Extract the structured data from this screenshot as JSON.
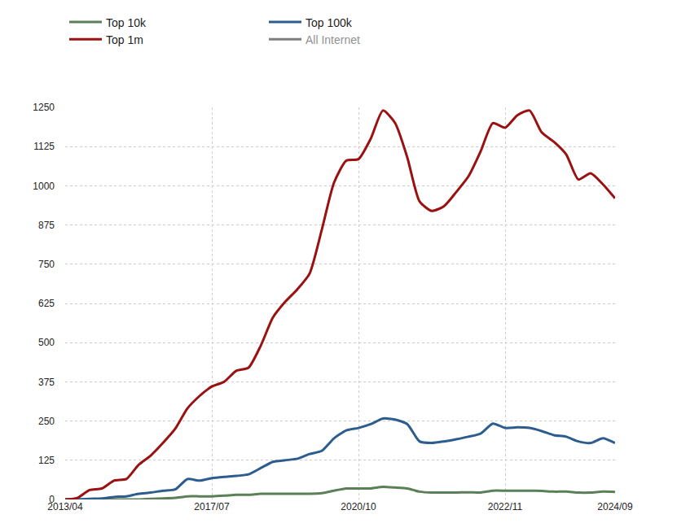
{
  "chart_data": {
    "type": "line",
    "categories": [
      "2013/04",
      null,
      null,
      null,
      null,
      null,
      null,
      null,
      null,
      null,
      null,
      null,
      "2017/07",
      null,
      null,
      null,
      null,
      null,
      null,
      null,
      null,
      null,
      null,
      null,
      "2020/10",
      null,
      null,
      null,
      null,
      null,
      null,
      null,
      null,
      null,
      null,
      null,
      "2022/11",
      null,
      null,
      null,
      null,
      null,
      null,
      null,
      null,
      "2024/09"
    ],
    "series": [
      {
        "name": "Top 10k",
        "color": "#5b7f56",
        "values": [
          0,
          0,
          0,
          0,
          0,
          0,
          0,
          2,
          3,
          5,
          10,
          10,
          10,
          12,
          15,
          15,
          18,
          18,
          18,
          18,
          18,
          20,
          28,
          35,
          35,
          35,
          40,
          38,
          35,
          25,
          22,
          22,
          22,
          23,
          22,
          28,
          28,
          28,
          28,
          27,
          25,
          25,
          22,
          22,
          25,
          24
        ]
      },
      {
        "name": "Top 100k",
        "color": "#2d5d8f",
        "values": [
          0,
          0,
          2,
          3,
          8,
          10,
          18,
          22,
          28,
          32,
          65,
          60,
          68,
          72,
          75,
          80,
          100,
          120,
          125,
          130,
          145,
          155,
          195,
          220,
          228,
          240,
          258,
          255,
          240,
          185,
          180,
          185,
          192,
          200,
          210,
          242,
          228,
          230,
          228,
          218,
          205,
          200,
          185,
          180,
          195,
          180
        ]
      },
      {
        "name": "Top 1m",
        "color": "#991111",
        "values": [
          0,
          5,
          30,
          35,
          60,
          65,
          110,
          140,
          180,
          225,
          290,
          330,
          360,
          375,
          410,
          420,
          490,
          580,
          630,
          670,
          720,
          860,
          1010,
          1080,
          1085,
          1150,
          1240,
          1200,
          1090,
          950,
          920,
          935,
          980,
          1030,
          1110,
          1200,
          1185,
          1225,
          1240,
          1170,
          1140,
          1100,
          1020,
          1040,
          1005,
          960
        ]
      },
      {
        "name": "All Internet",
        "color": "#000000",
        "values": [
          null,
          null,
          null,
          null,
          null,
          null,
          null,
          null,
          null,
          null,
          null,
          null,
          null,
          null,
          null,
          null,
          null,
          null,
          null,
          null,
          null,
          null,
          null,
          null,
          null,
          null,
          null,
          null,
          null,
          null,
          null,
          null,
          null,
          null,
          null,
          null,
          null,
          null,
          null,
          null,
          null,
          null,
          null,
          null,
          null,
          null
        ]
      }
    ],
    "ylim": [
      0,
      1250
    ],
    "yticks": [
      0,
      125,
      250,
      375,
      500,
      625,
      750,
      875,
      1000,
      1125,
      1250
    ],
    "grid": true,
    "legend": "top"
  }
}
